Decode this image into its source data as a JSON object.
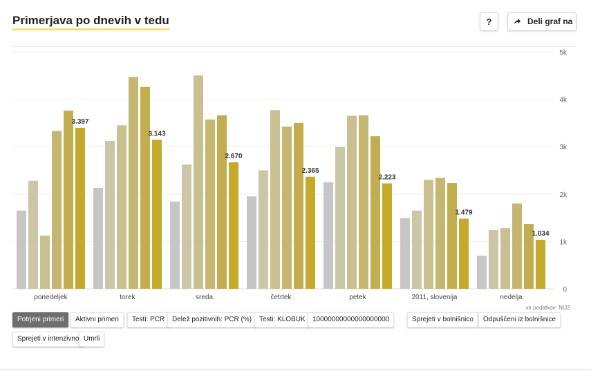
{
  "header": {
    "title": "Primerjava po dnevih v tedu",
    "help_label": "?",
    "share_label": "Deli graf na",
    "share_icon": "share-arrow-icon"
  },
  "source": "vir podatkov: NIJZ",
  "filters": [
    {
      "label": "Potrjeni primeri",
      "active": true
    },
    {
      "label": "Aktivni primeri",
      "active": false
    },
    {
      "label": "Testi: PCR",
      "active": false
    },
    {
      "label": "Delež pozitivnih: PCR (%)",
      "active": false
    },
    {
      "label": "Testi: KLOBUK",
      "active": false
    },
    {
      "label": "10000000000000000000",
      "active": false
    },
    {
      "label": "Sprejeti v bolnišnico",
      "active": false
    },
    {
      "label": "Odpuščeni iz bolnišnice",
      "active": false
    },
    {
      "label": "Sprejeti v intenzivno",
      "active": false
    },
    {
      "label": "Umrli",
      "active": false
    }
  ],
  "chart_data": {
    "type": "bar",
    "categories": [
      "ponedeljek",
      "torek",
      "sreda",
      "četrtek",
      "petek",
      "2011, slovenija",
      "nedelja"
    ],
    "series": [
      {
        "values": [
          1650,
          2130,
          1840,
          1950,
          2250,
          1490,
          700
        ],
        "color": "#c6c6c6"
      },
      {
        "values": [
          2280,
          3120,
          2620,
          2500,
          2990,
          1650,
          1240
        ],
        "color": "#ccc6a8"
      },
      {
        "values": [
          1120,
          3450,
          4500,
          3770,
          3650,
          2300,
          1280
        ],
        "color": "#c9bf90"
      },
      {
        "values": [
          3330,
          4470,
          3570,
          3420,
          3660,
          2340,
          1800
        ],
        "color": "#c5b671"
      },
      {
        "values": [
          3760,
          4260,
          3660,
          3500,
          3220,
          2230,
          1370
        ],
        "color": "#c3ae4f"
      },
      {
        "values": [
          3397,
          3143,
          2670,
          2365,
          2223,
          1479,
          1034
        ],
        "color": "#c4a92b"
      }
    ],
    "data_labels": [
      "3.397",
      "3.143",
      "2.670",
      "2.365",
      "2.223",
      "1.479",
      "1.034"
    ],
    "yticks": [
      "0",
      "1k",
      "2k",
      "3k",
      "4k",
      "5k"
    ],
    "ylim": [
      0,
      5000
    ],
    "grid": true
  }
}
